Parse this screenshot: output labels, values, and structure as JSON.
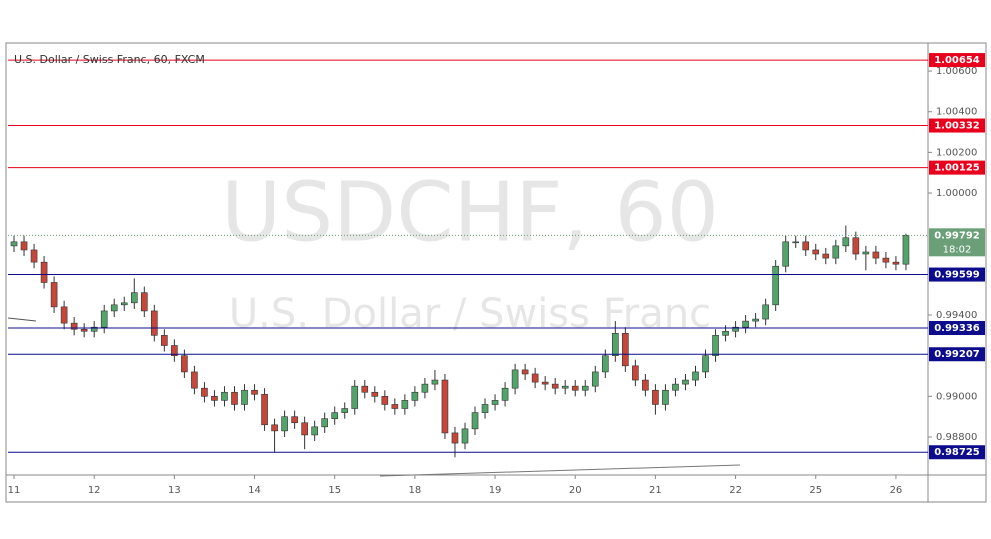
{
  "chart_data": {
    "type": "candlestick",
    "title": "U.S. Dollar / Swiss Franc, 60, FXCM",
    "watermark": "USDCHF, 60",
    "watermark_subtitle": "U.S. Dollar / Swiss Franc",
    "x": [
      0,
      0.125,
      0.25,
      0.375,
      0.5,
      0.625,
      0.75,
      0.875,
      1,
      1.125,
      1.25,
      1.375,
      1.5,
      1.625,
      1.75,
      1.875,
      2,
      2.125,
      2.25,
      2.375,
      2.5,
      2.625,
      2.75,
      2.875,
      3,
      3.125,
      3.25,
      3.375,
      3.5,
      3.625,
      3.75,
      3.875,
      4,
      4.125,
      4.25,
      4.375,
      4.5,
      4.625,
      4.75,
      4.875,
      5,
      5.125,
      5.25,
      5.375,
      5.5,
      5.625,
      5.75,
      5.875,
      6,
      6.125,
      6.25,
      6.375,
      6.5,
      6.625,
      6.75,
      6.875,
      7,
      7.125,
      7.25,
      7.375,
      7.5,
      7.625,
      7.75,
      7.875,
      8,
      8.125,
      8.25,
      8.375,
      8.5,
      8.625,
      8.75,
      8.875,
      9,
      9.125,
      9.25,
      9.375,
      9.5,
      9.625,
      9.75,
      9.875,
      10,
      10.125,
      10.25,
      10.375,
      10.5,
      10.625,
      10.75,
      10.875,
      11,
      11.125
    ],
    "open": [
      0.9974,
      0.9976,
      0.9972,
      0.9966,
      0.9956,
      0.9944,
      0.9936,
      0.9933,
      0.9932,
      0.9934,
      0.9942,
      0.9945,
      0.9946,
      0.9951,
      0.9942,
      0.993,
      0.9925,
      0.992,
      0.9912,
      0.9904,
      0.99,
      0.9898,
      0.9902,
      0.9896,
      0.9903,
      0.9901,
      0.9886,
      0.9883,
      0.989,
      0.9887,
      0.9881,
      0.9885,
      0.9889,
      0.9892,
      0.9894,
      0.9905,
      0.9902,
      0.99,
      0.9896,
      0.9894,
      0.9898,
      0.9902,
      0.9906,
      0.9908,
      0.9882,
      0.9877,
      0.9884,
      0.9892,
      0.9896,
      0.9898,
      0.9904,
      0.9913,
      0.9911,
      0.9907,
      0.9906,
      0.9904,
      0.9905,
      0.9903,
      0.9905,
      0.9912,
      0.992,
      0.9931,
      0.9915,
      0.9908,
      0.9903,
      0.9896,
      0.9903,
      0.9906,
      0.9908,
      0.9912,
      0.992,
      0.993,
      0.9932,
      0.9934,
      0.9937,
      0.9938,
      0.9945,
      0.9964,
      0.9976,
      0.9976,
      0.9972,
      0.997,
      0.9968,
      0.9974,
      0.9978,
      0.997,
      0.9971,
      0.9968,
      0.9966,
      0.9965
    ],
    "high": [
      0.9979,
      0.9979,
      0.9975,
      0.9969,
      0.9959,
      0.9947,
      0.9939,
      0.9936,
      0.9937,
      0.9945,
      0.9948,
      0.9949,
      0.9958,
      0.9954,
      0.9945,
      0.9933,
      0.9928,
      0.9923,
      0.9915,
      0.9907,
      0.9903,
      0.9905,
      0.9905,
      0.9906,
      0.9906,
      0.9904,
      0.9889,
      0.9893,
      0.9893,
      0.989,
      0.9888,
      0.9892,
      0.9895,
      0.9897,
      0.9908,
      0.9908,
      0.9905,
      0.9903,
      0.9899,
      0.9901,
      0.9905,
      0.9909,
      0.9913,
      0.9911,
      0.9885,
      0.9887,
      0.9895,
      0.9899,
      0.9901,
      0.9907,
      0.9916,
      0.9916,
      0.9914,
      0.991,
      0.9909,
      0.9908,
      0.9908,
      0.9908,
      0.9915,
      0.9923,
      0.9937,
      0.9934,
      0.9918,
      0.9911,
      0.9906,
      0.9906,
      0.9909,
      0.9911,
      0.9915,
      0.9923,
      0.9933,
      0.9935,
      0.9937,
      0.994,
      0.9941,
      0.9948,
      0.9967,
      0.9979,
      0.9979,
      0.9979,
      0.9975,
      0.9973,
      0.9977,
      0.9984,
      0.9981,
      0.9974,
      0.9974,
      0.9971,
      0.9969,
      0.998
    ],
    "low": [
      0.9971,
      0.9969,
      0.9963,
      0.9953,
      0.9941,
      0.9933,
      0.993,
      0.9929,
      0.9929,
      0.9931,
      0.9939,
      0.9942,
      0.9943,
      0.9939,
      0.9927,
      0.9922,
      0.9917,
      0.9909,
      0.9901,
      0.9897,
      0.9895,
      0.9895,
      0.9893,
      0.9893,
      0.9898,
      0.9883,
      0.98725,
      0.988,
      0.9884,
      0.9874,
      0.9878,
      0.9882,
      0.9886,
      0.9889,
      0.9891,
      0.9899,
      0.9897,
      0.9893,
      0.9891,
      0.9891,
      0.9895,
      0.9899,
      0.9903,
      0.9879,
      0.987,
      0.9874,
      0.9881,
      0.9889,
      0.9893,
      0.9895,
      0.9901,
      0.9908,
      0.9904,
      0.9903,
      0.9901,
      0.9901,
      0.99,
      0.99,
      0.9902,
      0.9909,
      0.9917,
      0.9912,
      0.9905,
      0.99,
      0.9891,
      0.9893,
      0.99,
      0.9903,
      0.9905,
      0.9909,
      0.9917,
      0.9927,
      0.9929,
      0.9931,
      0.9934,
      0.9935,
      0.9942,
      0.9961,
      0.9973,
      0.9969,
      0.9967,
      0.9965,
      0.9965,
      0.9971,
      0.9967,
      0.9962,
      0.9965,
      0.9963,
      0.9962,
      0.9962
    ],
    "close": [
      0.9976,
      0.9972,
      0.9966,
      0.9956,
      0.9944,
      0.9936,
      0.9933,
      0.9932,
      0.9934,
      0.9942,
      0.9945,
      0.9946,
      0.9951,
      0.9942,
      0.993,
      0.9925,
      0.992,
      0.9912,
      0.9904,
      0.99,
      0.9898,
      0.9902,
      0.9896,
      0.9903,
      0.9901,
      0.9886,
      0.9883,
      0.989,
      0.9887,
      0.9881,
      0.9885,
      0.9889,
      0.9892,
      0.9894,
      0.9905,
      0.9902,
      0.99,
      0.9896,
      0.9894,
      0.9898,
      0.9902,
      0.9906,
      0.9908,
      0.9882,
      0.9877,
      0.9884,
      0.9892,
      0.9896,
      0.9898,
      0.9904,
      0.9913,
      0.9911,
      0.9907,
      0.9906,
      0.9904,
      0.9905,
      0.9903,
      0.9905,
      0.9912,
      0.992,
      0.9931,
      0.9915,
      0.9908,
      0.9903,
      0.9896,
      0.9903,
      0.9906,
      0.9908,
      0.9912,
      0.992,
      0.993,
      0.9932,
      0.9934,
      0.9937,
      0.9938,
      0.9945,
      0.9964,
      0.9976,
      0.9976,
      0.9972,
      0.997,
      0.9968,
      0.9974,
      0.9978,
      0.997,
      0.9971,
      0.9968,
      0.9966,
      0.9965,
      0.99792
    ],
    "up_color": "#53a46b",
    "down_color": "#c4473a",
    "xlim": [
      -0.075,
      11.4
    ],
    "xticks": [
      {
        "value": 0,
        "label": "11"
      },
      {
        "value": 1,
        "label": "12"
      },
      {
        "value": 2,
        "label": "13"
      },
      {
        "value": 3,
        "label": "14"
      },
      {
        "value": 4,
        "label": "15"
      },
      {
        "value": 5,
        "label": "18"
      },
      {
        "value": 6,
        "label": "19"
      },
      {
        "value": 7,
        "label": "20"
      },
      {
        "value": 8,
        "label": "21"
      },
      {
        "value": 9,
        "label": "22"
      },
      {
        "value": 10,
        "label": "25"
      },
      {
        "value": 11,
        "label": "26"
      }
    ],
    "ylim": [
      0.98613,
      1.00738
    ],
    "yticks": [
      {
        "value": 1.006,
        "label": "1.00600"
      },
      {
        "value": 1.004,
        "label": "1.00400"
      },
      {
        "value": 1.002,
        "label": "1.00200"
      },
      {
        "value": 1.0,
        "label": "1.00000"
      },
      {
        "value": 0.994,
        "label": "0.99400"
      },
      {
        "value": 0.99,
        "label": "0.99000"
      },
      {
        "value": 0.988,
        "label": "0.98800"
      }
    ],
    "levels": [
      {
        "value": 1.00654,
        "color": "#e8001c"
      },
      {
        "value": 1.00332,
        "color": "#e8001c"
      },
      {
        "value": 1.00125,
        "color": "#e8001c"
      },
      {
        "value": 0.99599,
        "color": "#0c0c8c"
      },
      {
        "value": 0.99336,
        "color": "#0c0c8c"
      },
      {
        "value": 0.99207,
        "color": "#0c0c8c"
      },
      {
        "value": 0.98725,
        "color": "#0c0c8c"
      }
    ],
    "last_price": 0.99792,
    "last_color": "#6a9f78",
    "countdown": "18:02"
  }
}
